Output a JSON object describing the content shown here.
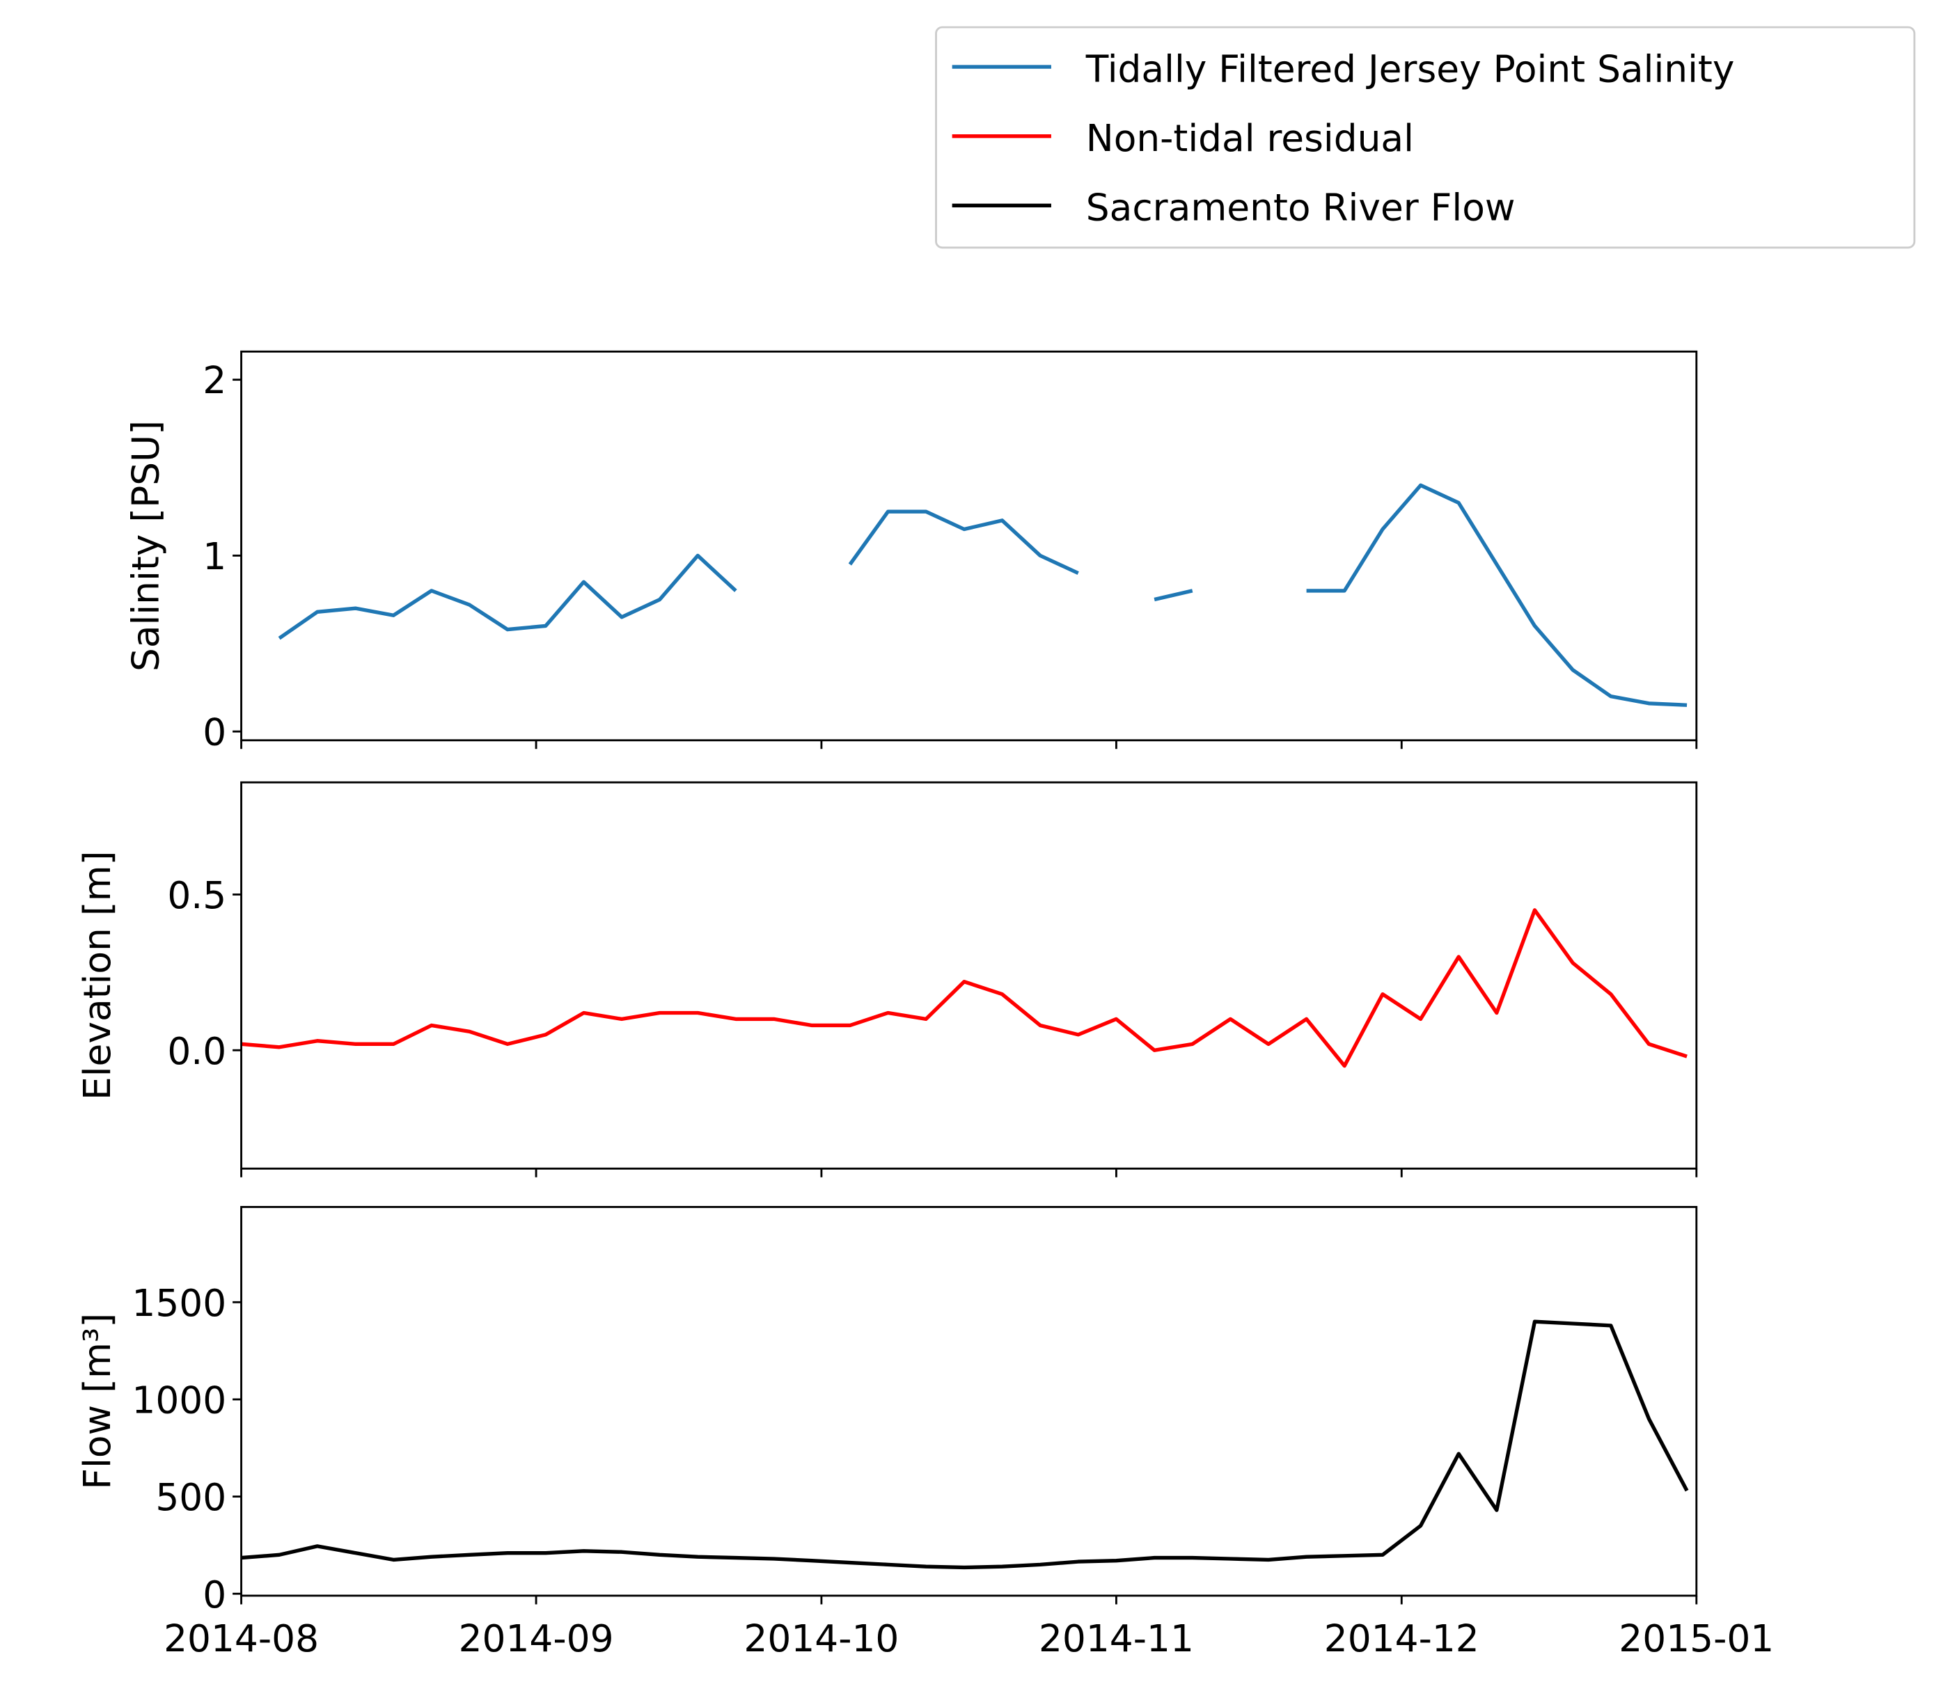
{
  "chart_data": [
    {
      "type": "line",
      "ylabel": "Salinity [PSU]",
      "legend": "upper right",
      "xlim": [
        "2014-08",
        "2015-01"
      ],
      "xticks": [
        "2014-08",
        "2014-09",
        "2014-10",
        "2014-11",
        "2014-12",
        "2015-01"
      ],
      "ylim": [
        -0.05,
        2.16
      ],
      "yticks": [
        0,
        1,
        2
      ],
      "x": [
        "2014-08-01",
        "2014-08-05",
        "2014-08-09",
        "2014-08-13",
        "2014-08-17",
        "2014-08-21",
        "2014-08-25",
        "2014-08-29",
        "2014-09-02",
        "2014-09-06",
        "2014-09-10",
        "2014-09-14",
        "2014-09-18",
        "2014-09-22",
        "2014-09-26",
        "2014-09-30",
        "2014-10-04",
        "2014-10-08",
        "2014-10-12",
        "2014-10-16",
        "2014-10-20",
        "2014-10-24",
        "2014-10-28",
        "2014-11-01",
        "2014-11-05",
        "2014-11-09",
        "2014-11-13",
        "2014-11-17",
        "2014-11-21",
        "2014-11-25",
        "2014-11-29",
        "2014-12-03",
        "2014-12-07",
        "2014-12-11",
        "2014-12-15",
        "2014-12-19",
        "2014-12-23",
        "2014-12-27",
        "2014-12-31"
      ],
      "series": [
        {
          "name": "Tidally Filtered Jersey Point Salinity",
          "color": "#1f77b4",
          "values": [
            null,
            0.53,
            0.68,
            0.7,
            0.66,
            0.8,
            0.72,
            0.58,
            0.6,
            0.85,
            0.65,
            0.75,
            1.0,
            0.8,
            null,
            null,
            0.95,
            1.25,
            1.25,
            1.15,
            1.2,
            1.0,
            0.9,
            null,
            0.75,
            0.8,
            null,
            null,
            0.8,
            0.8,
            1.15,
            1.4,
            1.3,
            0.95,
            0.6,
            0.35,
            0.2,
            0.16,
            0.15
          ]
        }
      ]
    },
    {
      "type": "line",
      "ylabel": "Elevation [m]",
      "xlim": [
        "2014-08",
        "2015-01"
      ],
      "xticks": [
        "2014-08",
        "2014-09",
        "2014-10",
        "2014-11",
        "2014-12",
        "2015-01"
      ],
      "ylim": [
        -0.38,
        0.86
      ],
      "yticks": [
        {
          "value": 0,
          "label": "0.0"
        },
        0.5
      ],
      "x": [
        "2014-08-01",
        "2014-08-05",
        "2014-08-09",
        "2014-08-13",
        "2014-08-17",
        "2014-08-21",
        "2014-08-25",
        "2014-08-29",
        "2014-09-02",
        "2014-09-06",
        "2014-09-10",
        "2014-09-14",
        "2014-09-18",
        "2014-09-22",
        "2014-09-26",
        "2014-09-30",
        "2014-10-04",
        "2014-10-08",
        "2014-10-12",
        "2014-10-16",
        "2014-10-20",
        "2014-10-24",
        "2014-10-28",
        "2014-11-01",
        "2014-11-05",
        "2014-11-09",
        "2014-11-13",
        "2014-11-17",
        "2014-11-21",
        "2014-11-25",
        "2014-11-29",
        "2014-12-03",
        "2014-12-07",
        "2014-12-11",
        "2014-12-15",
        "2014-12-19",
        "2014-12-23",
        "2014-12-27",
        "2014-12-31"
      ],
      "series": [
        {
          "name": "Non-tidal residual",
          "color": "#ff0000",
          "values": [
            0.02,
            0.01,
            0.03,
            0.02,
            0.02,
            0.08,
            0.06,
            0.02,
            0.05,
            0.12,
            0.1,
            0.12,
            0.12,
            0.1,
            0.1,
            0.08,
            0.08,
            0.12,
            0.1,
            0.22,
            0.18,
            0.08,
            0.05,
            0.1,
            0.0,
            0.02,
            0.1,
            0.02,
            0.1,
            -0.05,
            0.18,
            0.1,
            0.3,
            0.12,
            0.45,
            0.28,
            0.18,
            0.02,
            -0.02
          ]
        }
      ]
    },
    {
      "type": "line",
      "ylabel": "Flow [m³]",
      "xlim": [
        "2014-08",
        "2015-01"
      ],
      "xticks": [
        "2014-08",
        "2014-09",
        "2014-10",
        "2014-11",
        "2014-12",
        "2015-01"
      ],
      "ylim": [
        -10,
        1990
      ],
      "yticks": [
        0,
        500,
        1000,
        1500
      ],
      "x": [
        "2014-08-01",
        "2014-08-05",
        "2014-08-09",
        "2014-08-13",
        "2014-08-17",
        "2014-08-21",
        "2014-08-25",
        "2014-08-29",
        "2014-09-02",
        "2014-09-06",
        "2014-09-10",
        "2014-09-14",
        "2014-09-18",
        "2014-09-22",
        "2014-09-26",
        "2014-09-30",
        "2014-10-04",
        "2014-10-08",
        "2014-10-12",
        "2014-10-16",
        "2014-10-20",
        "2014-10-24",
        "2014-10-28",
        "2014-11-01",
        "2014-11-05",
        "2014-11-09",
        "2014-11-13",
        "2014-11-17",
        "2014-11-21",
        "2014-11-25",
        "2014-11-29",
        "2014-12-03",
        "2014-12-07",
        "2014-12-11",
        "2014-12-15",
        "2014-12-19",
        "2014-12-23",
        "2014-12-27",
        "2014-12-31"
      ],
      "series": [
        {
          "name": "Sacramento River Flow",
          "color": "#000000",
          "values": [
            185,
            200,
            245,
            210,
            175,
            190,
            200,
            210,
            210,
            220,
            215,
            200,
            190,
            185,
            180,
            170,
            160,
            150,
            140,
            135,
            140,
            150,
            165,
            170,
            185,
            185,
            180,
            175,
            190,
            195,
            200,
            350,
            720,
            430,
            1400,
            1390,
            1380,
            900,
            530
          ]
        }
      ]
    }
  ]
}
